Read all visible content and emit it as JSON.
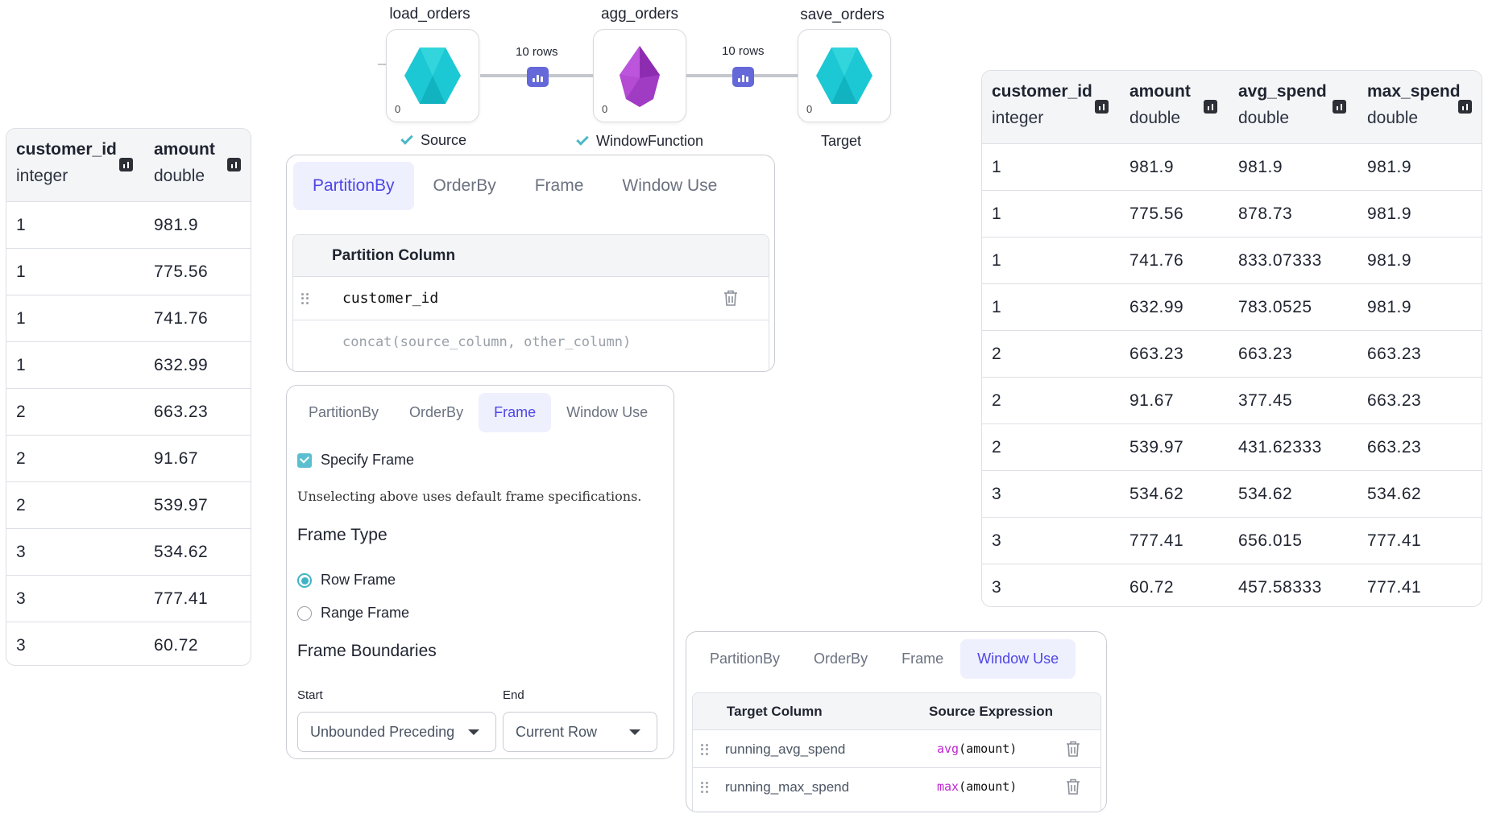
{
  "input_table": {
    "columns": [
      {
        "name": "customer_id",
        "type": "integer"
      },
      {
        "name": "amount",
        "type": "double"
      }
    ],
    "rows": [
      [
        "1",
        "981.9"
      ],
      [
        "1",
        "775.56"
      ],
      [
        "1",
        "741.76"
      ],
      [
        "1",
        "632.99"
      ],
      [
        "2",
        "663.23"
      ],
      [
        "2",
        "91.67"
      ],
      [
        "2",
        "539.97"
      ],
      [
        "3",
        "534.62"
      ],
      [
        "3",
        "777.41"
      ],
      [
        "3",
        "60.72"
      ]
    ]
  },
  "output_table": {
    "columns": [
      {
        "name": "customer_id",
        "type": "integer"
      },
      {
        "name": "amount",
        "type": "double"
      },
      {
        "name": "avg_spend",
        "type": "double"
      },
      {
        "name": "max_spend",
        "type": "double"
      }
    ],
    "rows": [
      [
        "1",
        "981.9",
        "981.9",
        "981.9"
      ],
      [
        "1",
        "775.56",
        "878.73",
        "981.9"
      ],
      [
        "1",
        "741.76",
        "833.07333",
        "981.9"
      ],
      [
        "1",
        "632.99",
        "783.0525",
        "981.9"
      ],
      [
        "2",
        "663.23",
        "663.23",
        "663.23"
      ],
      [
        "2",
        "91.67",
        "377.45",
        "663.23"
      ],
      [
        "2",
        "539.97",
        "431.62333",
        "663.23"
      ],
      [
        "3",
        "534.62",
        "534.62",
        "534.62"
      ],
      [
        "3",
        "777.41",
        "656.015",
        "777.41"
      ],
      [
        "3",
        "60.72",
        "457.58333",
        "777.41"
      ]
    ]
  },
  "pipeline": {
    "nodes": [
      {
        "name": "load_orders",
        "count": "0",
        "status": "Source",
        "color": "#1cc8d3"
      },
      {
        "name": "agg_orders",
        "count": "0",
        "status": "WindowFunction",
        "color": "#a03cc4"
      },
      {
        "name": "save_orders",
        "count": "0",
        "status": "Target",
        "color": "#1cc8d3"
      }
    ],
    "edges": [
      {
        "label": "10 rows"
      },
      {
        "label": "10 rows"
      }
    ]
  },
  "tabs": [
    "PartitionBy",
    "OrderBy",
    "Frame",
    "Window Use"
  ],
  "partition_panel": {
    "header": "Partition Column",
    "column": "customer_id",
    "placeholder": "concat(source_column, other_column)"
  },
  "frame_panel": {
    "specify_frame": "Specify Frame",
    "hint": "Unselecting above uses default frame specifications.",
    "frame_type_label": "Frame Type",
    "options": [
      "Row Frame",
      "Range Frame"
    ],
    "selected_option": "Row Frame",
    "boundaries_label": "Frame Boundaries",
    "start_label": "Start",
    "start_value": "Unbounded Preceding",
    "end_label": "End",
    "end_value": "Current Row"
  },
  "window_use_panel": {
    "headers": [
      "Target Column",
      "Source Expression"
    ],
    "rows": [
      {
        "target": "running_avg_spend",
        "fn": "avg",
        "arg": "(amount)"
      },
      {
        "target": "running_max_spend",
        "fn": "max",
        "arg": "(amount)"
      }
    ]
  },
  "colors": {
    "accent": "#4f46e5",
    "accent_bg": "#eef0fe",
    "teal": "#3fb3c6",
    "badge": "#6468d8",
    "fn_purple": "#c026d3"
  }
}
